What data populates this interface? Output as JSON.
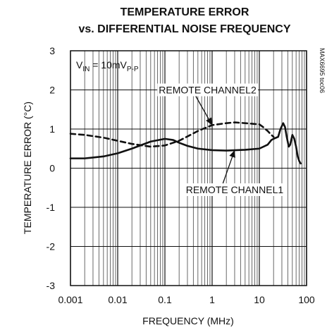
{
  "chart_data": {
    "type": "line",
    "title_line1": "TEMPERATURE ERROR",
    "title_line2": "vs. DIFFERENTIAL NOISE FREQUENCY",
    "xlabel": "FREQUENCY (MHz)",
    "ylabel": "TEMPERATURE ERROR (°C)",
    "x_scale": "log",
    "xlim": [
      0.001,
      100
    ],
    "ylim": [
      -3,
      3
    ],
    "x_ticks": [
      {
        "value": 0.001,
        "label": "0.001"
      },
      {
        "value": 0.01,
        "label": "0.01"
      },
      {
        "value": 0.1,
        "label": "0.1"
      },
      {
        "value": 1,
        "label": "1"
      },
      {
        "value": 10,
        "label": "10"
      },
      {
        "value": 100,
        "label": "100"
      }
    ],
    "y_ticks": [
      {
        "value": 3,
        "label": "3"
      },
      {
        "value": 2,
        "label": "2"
      },
      {
        "value": 1,
        "label": "1"
      },
      {
        "value": 0,
        "label": "0"
      },
      {
        "value": -1,
        "label": "-1"
      },
      {
        "value": -2,
        "label": "-2"
      },
      {
        "value": -3,
        "label": "-3"
      }
    ],
    "grid": true,
    "condition_text": {
      "main": "V",
      "sub1": "IN",
      "mid": " = 10mV",
      "sub2": "P-P"
    },
    "part_code": "MAX6695 toc06",
    "series": [
      {
        "name": "REMOTE CHANNEL1",
        "style": "solid",
        "color": "#111111",
        "x": [
          0.001,
          0.002,
          0.005,
          0.01,
          0.02,
          0.05,
          0.1,
          0.15,
          0.2,
          0.3,
          0.5,
          1,
          2,
          5,
          10,
          15,
          18,
          20,
          25,
          28,
          32,
          35,
          38,
          42,
          45,
          50,
          55,
          60,
          65,
          70,
          75
        ],
        "y": [
          0.25,
          0.25,
          0.3,
          0.38,
          0.5,
          0.68,
          0.75,
          0.72,
          0.65,
          0.57,
          0.5,
          0.46,
          0.45,
          0.47,
          0.5,
          0.6,
          0.72,
          0.75,
          0.8,
          1.0,
          1.15,
          1.05,
          0.8,
          0.55,
          0.6,
          0.85,
          0.75,
          0.55,
          0.3,
          0.18,
          0.12
        ]
      },
      {
        "name": "REMOTE CHANNEL2",
        "style": "dashed",
        "color": "#111111",
        "x": [
          0.001,
          0.002,
          0.005,
          0.01,
          0.02,
          0.05,
          0.1,
          0.2,
          0.5,
          1,
          2,
          3,
          5,
          8,
          10,
          12,
          15,
          18,
          20
        ],
        "y": [
          0.88,
          0.85,
          0.78,
          0.7,
          0.62,
          0.55,
          0.58,
          0.7,
          0.95,
          1.1,
          1.15,
          1.17,
          1.15,
          1.13,
          1.12,
          1.05,
          0.95,
          0.85,
          0.8
        ]
      }
    ],
    "annotations": [
      {
        "label": "REMOTE CHANNEL2",
        "series": "REMOTE CHANNEL2",
        "text_x": 0.8,
        "text_y": 2.0,
        "point_x": 1.0,
        "point_y": 1.1
      },
      {
        "label": "REMOTE CHANNEL1",
        "series": "REMOTE CHANNEL1",
        "text_x": 3.0,
        "text_y": -0.55,
        "point_x": 3.0,
        "point_y": 0.46
      }
    ]
  }
}
